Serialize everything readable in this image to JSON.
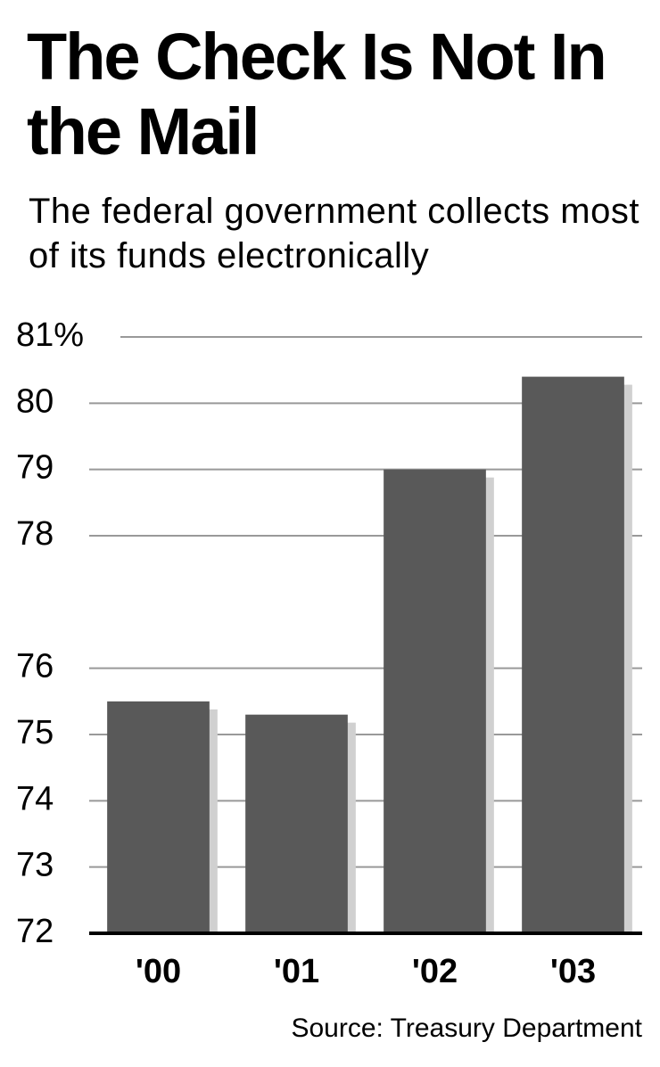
{
  "chart_data": {
    "type": "bar",
    "title": "The Check Is Not In the Mail",
    "subtitle": "The federal government collects most of its funds electronically",
    "categories": [
      "'00",
      "'01",
      "'02",
      "'03"
    ],
    "values": [
      75.5,
      75.3,
      79.0,
      80.4
    ],
    "color": "#595959",
    "ylim": [
      72,
      81
    ],
    "yticks": [
      72,
      73,
      74,
      75,
      76,
      78,
      79,
      80,
      {
        "value": 81,
        "label": "81%"
      }
    ],
    "grid": true,
    "source": "Source: Treasury Department"
  }
}
